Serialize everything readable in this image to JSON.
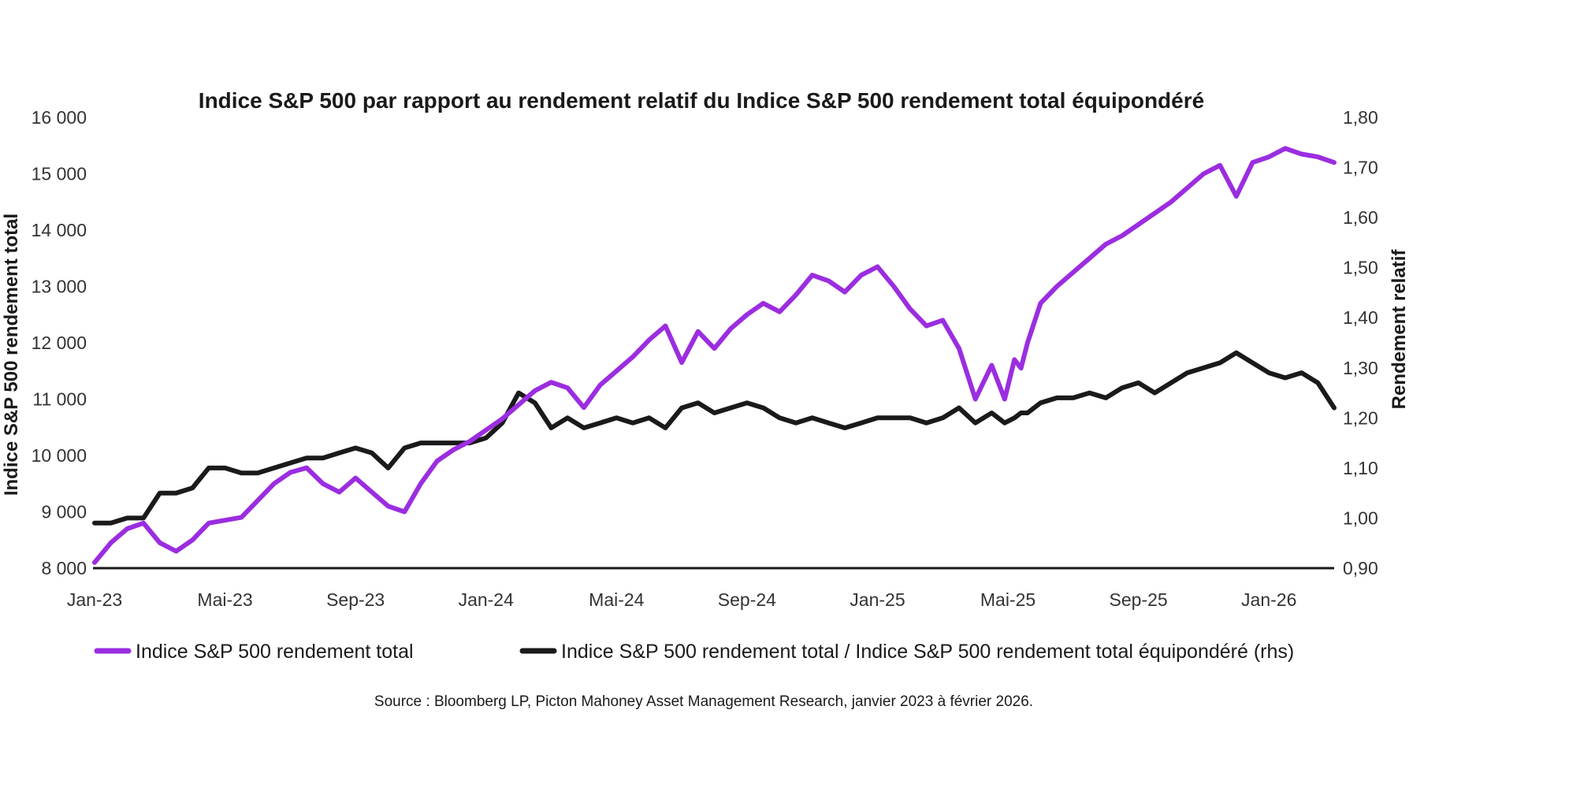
{
  "chart_data": {
    "type": "line",
    "title": "Indice S&P 500 par rapport au rendement relatif du Indice S&P 500 rendement total équipondéré",
    "ylabel_left": "Indice S&P 500 rendement total",
    "ylabel_right": "Rendement relatif",
    "xlabel": "",
    "ylim_left": [
      8000,
      16000
    ],
    "ylim_right": [
      0.9,
      1.8
    ],
    "yticks_left": [
      "8 000",
      "9 000",
      "10 000",
      "11 000",
      "12 000",
      "13 000",
      "14 000",
      "15 000",
      "16 000"
    ],
    "yticks_right": [
      "0,90",
      "1,00",
      "1,10",
      "1,20",
      "1,30",
      "1,40",
      "1,50",
      "1,60",
      "1,70",
      "1,80"
    ],
    "categories": [
      "Jan-23",
      "Mai-23",
      "Sep-23",
      "Jan-24",
      "Mai-24",
      "Sep-24",
      "Jan-25",
      "Mai-25",
      "Sep-25",
      "Jan-26"
    ],
    "x": [
      0.0,
      0.5,
      1.0,
      1.5,
      2.0,
      2.5,
      3.0,
      3.5,
      4.0,
      4.5,
      5.0,
      5.5,
      6.0,
      6.5,
      7.0,
      7.5,
      8.0,
      8.5,
      9.0,
      9.5,
      10.0,
      10.5,
      11.0,
      11.5,
      12.0,
      12.5,
      13.0,
      13.5,
      14.0,
      14.5,
      15.0,
      15.5,
      16.0,
      16.5,
      17.0,
      17.5,
      18.0,
      18.5,
      19.0,
      19.5,
      20.0,
      20.5,
      21.0,
      21.5,
      22.0,
      22.5,
      23.0,
      23.5,
      24.0,
      24.5,
      25.0,
      25.5,
      26.0,
      26.5,
      27.0,
      27.5,
      27.9,
      28.2,
      28.4,
      28.6,
      29.0,
      29.5,
      30.0,
      30.5,
      31.0,
      31.5,
      32.0,
      32.5,
      33.0,
      33.5,
      34.0,
      34.5,
      35.0,
      35.5,
      36.0,
      36.5,
      37.0,
      37.5,
      38.0
    ],
    "series": [
      {
        "name": "Indice S&P 500 rendement total",
        "axis": "left",
        "color": "#9b2de0",
        "values": [
          8100,
          8450,
          8700,
          8800,
          8450,
          8300,
          8500,
          8800,
          8850,
          8900,
          9200,
          9500,
          9700,
          9780,
          9500,
          9350,
          9600,
          9350,
          9100,
          9000,
          9500,
          9900,
          10100,
          10250,
          10450,
          10650,
          10900,
          11150,
          11300,
          11200,
          10850,
          11250,
          11500,
          11750,
          12050,
          12300,
          11650,
          12200,
          11900,
          12250,
          12500,
          12700,
          12550,
          12850,
          13200,
          13100,
          12900,
          13200,
          13350,
          13000,
          12600,
          12300,
          12400,
          11900,
          11000,
          11600,
          11000,
          11700,
          11550,
          12000,
          12700,
          13000,
          13250,
          13500,
          13750,
          13900,
          14100,
          14300,
          14500,
          14750,
          15000,
          15150,
          14600,
          15200,
          15300,
          15450,
          15350,
          15300,
          15200
        ]
      },
      {
        "name": "Indice S&P 500 rendement total / Indice S&P 500 rendement total équipondéré (rhs)",
        "axis": "right",
        "color": "#1a1a1a",
        "values": [
          0.99,
          0.99,
          1.0,
          1.0,
          1.05,
          1.05,
          1.06,
          1.1,
          1.1,
          1.09,
          1.09,
          1.1,
          1.11,
          1.12,
          1.12,
          1.13,
          1.14,
          1.13,
          1.1,
          1.14,
          1.15,
          1.15,
          1.15,
          1.15,
          1.16,
          1.19,
          1.25,
          1.23,
          1.18,
          1.2,
          1.18,
          1.19,
          1.2,
          1.19,
          1.2,
          1.18,
          1.22,
          1.23,
          1.21,
          1.22,
          1.23,
          1.22,
          1.2,
          1.19,
          1.2,
          1.19,
          1.18,
          1.19,
          1.2,
          1.2,
          1.2,
          1.19,
          1.2,
          1.22,
          1.19,
          1.21,
          1.19,
          1.2,
          1.21,
          1.21,
          1.23,
          1.24,
          1.24,
          1.25,
          1.24,
          1.26,
          1.27,
          1.25,
          1.27,
          1.29,
          1.3,
          1.31,
          1.33,
          1.31,
          1.29,
          1.28,
          1.29,
          1.27,
          1.22
        ]
      }
    ],
    "legend": [
      {
        "label": "Indice S&P 500 rendement total",
        "color": "#9b2de0"
      },
      {
        "label": "Indice S&P 500 rendement total / Indice S&P 500 rendement total équipondéré (rhs)",
        "color": "#1a1a1a"
      }
    ],
    "legend_position": "bottom",
    "grid": false,
    "source": "Source : Bloomberg LP, Picton Mahoney Asset Management Research, janvier 2023 à février 2026."
  }
}
